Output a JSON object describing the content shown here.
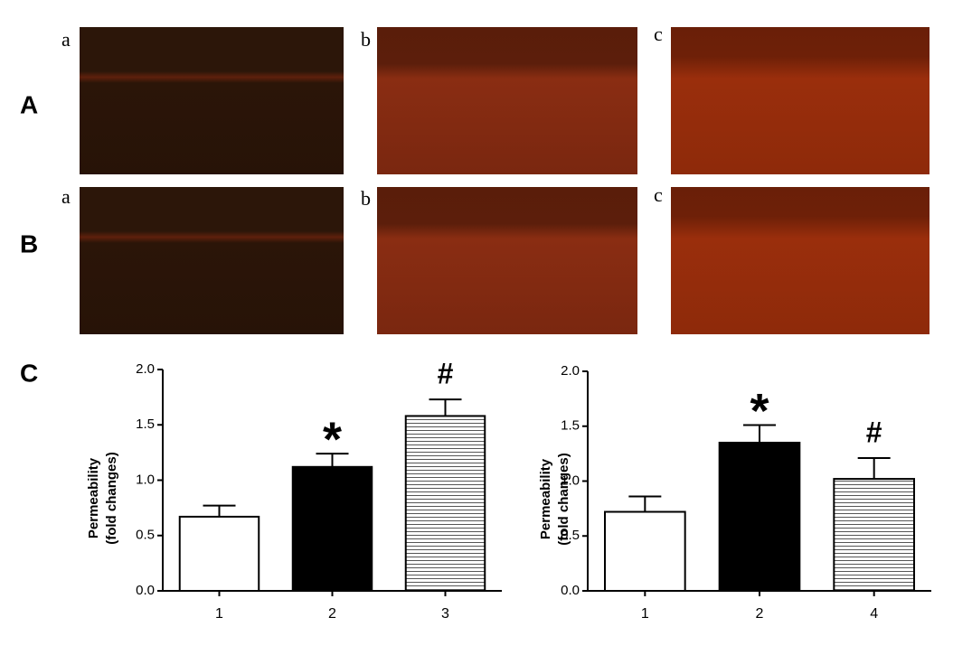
{
  "figure": {
    "row_labels": [
      "A",
      "B"
    ],
    "chart_label": "C",
    "image_labels": [
      [
        "a",
        "b",
        "c"
      ],
      [
        "a",
        "b",
        "c"
      ]
    ]
  },
  "chart_data": [
    {
      "type": "bar",
      "ylabel": [
        "Permeability",
        "(fold changes)"
      ],
      "categories": [
        "1",
        "2",
        "3"
      ],
      "values": [
        0.67,
        1.12,
        1.58
      ],
      "errors": [
        0.1,
        0.12,
        0.15
      ],
      "bar_styles": [
        "#ffffff",
        "#000000",
        "hatch"
      ],
      "annotations": [
        {
          "text": "*",
          "index": 1
        },
        {
          "text": "#",
          "index": 2
        }
      ],
      "ylim": [
        0,
        2
      ],
      "yticks": [
        {
          "value": 0,
          "label": "0.0"
        },
        0.5,
        {
          "value": 1,
          "label": "1.0"
        },
        1.5,
        {
          "value": 2,
          "label": "2.0"
        }
      ]
    },
    {
      "type": "bar",
      "ylabel": [
        "Permeability",
        "(fold changes)"
      ],
      "categories": [
        "1",
        "2",
        "4"
      ],
      "values": [
        0.72,
        1.35,
        1.02
      ],
      "errors": [
        0.14,
        0.16,
        0.19
      ],
      "bar_styles": [
        "#ffffff",
        "#000000",
        "hatch"
      ],
      "annotations": [
        {
          "text": "*",
          "index": 1
        },
        {
          "text": "#",
          "index": 2
        }
      ],
      "ylim": [
        0,
        2
      ],
      "yticks": [
        {
          "value": 0,
          "label": "0.0"
        },
        0.5,
        {
          "value": 1,
          "label": "1.0"
        },
        1.5,
        {
          "value": 2,
          "label": "2.0"
        }
      ]
    }
  ]
}
